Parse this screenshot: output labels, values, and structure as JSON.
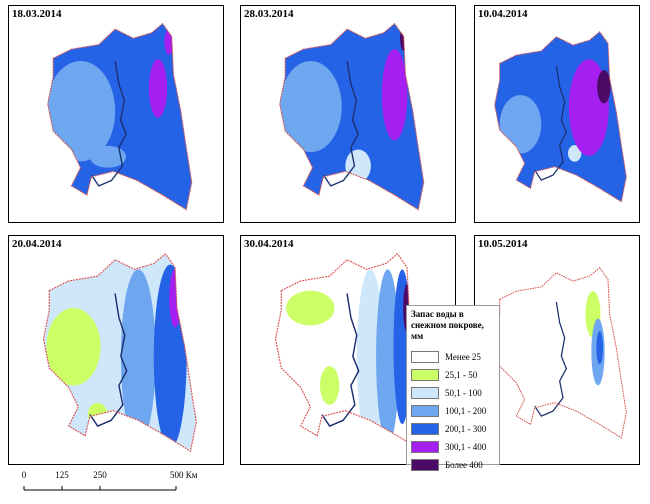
{
  "panels": [
    {
      "date": "18.03.2014"
    },
    {
      "date": "28.03.2014"
    },
    {
      "date": "10.04.2014"
    },
    {
      "date": "20.04.2014"
    },
    {
      "date": "30.04.2014"
    },
    {
      "date": "10.05.2014"
    }
  ],
  "legend": {
    "title": "Запас воды в снежном покрове, мм",
    "items": [
      {
        "label": "Менее 25",
        "color": "#ffffff"
      },
      {
        "label": "25,1 - 50",
        "color": "#ccff66"
      },
      {
        "label": "50,1 - 100",
        "color": "#cfe7fb"
      },
      {
        "label": "100,1 - 200",
        "color": "#6ea6ef"
      },
      {
        "label": "200,1 - 300",
        "color": "#2563e6"
      },
      {
        "label": "300,1 - 400",
        "color": "#a41ff0"
      },
      {
        "label": "Более 400",
        "color": "#4a0a66"
      }
    ]
  },
  "scale_bar": {
    "labels": [
      "0",
      "125",
      "250",
      "500 Км"
    ]
  }
}
